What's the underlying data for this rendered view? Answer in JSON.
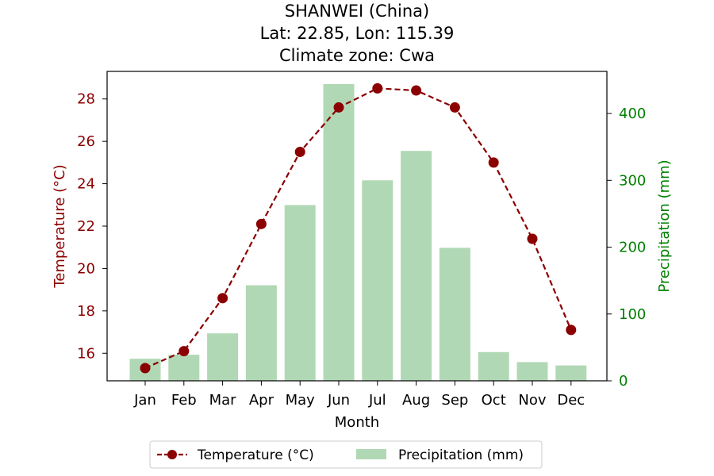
{
  "chart_data": {
    "type": "bar+line",
    "title_lines": [
      "SHANWEI (China)",
      "Lat: 22.85, Lon: 115.39",
      "Climate zone: Cwa"
    ],
    "categories": [
      "Jan",
      "Feb",
      "Mar",
      "Apr",
      "May",
      "Jun",
      "Jul",
      "Aug",
      "Sep",
      "Oct",
      "Nov",
      "Dec"
    ],
    "xlabel": "Month",
    "ylabel_left": "Temperature (°C)",
    "ylabel_right": "Precipitation (mm)",
    "ylim_left": [
      14.7,
      29.3
    ],
    "ylim_right": [
      0,
      463
    ],
    "yticks_left": [
      16,
      18,
      20,
      22,
      24,
      26,
      28
    ],
    "yticks_right": [
      0,
      100,
      200,
      300,
      400
    ],
    "series": [
      {
        "name": "Temperature (°C)",
        "kind": "line",
        "axis": "left",
        "style": "dashed with circle markers",
        "color": "#8b0000",
        "values": [
          15.3,
          16.1,
          18.6,
          22.1,
          25.5,
          27.6,
          28.5,
          28.4,
          27.6,
          25.0,
          21.4,
          17.1
        ]
      },
      {
        "name": "Precipitation (mm)",
        "kind": "bar",
        "axis": "right",
        "color": "#b1d8b5",
        "values": [
          33,
          39,
          71,
          143,
          263,
          444,
          300,
          344,
          199,
          43,
          28,
          23
        ]
      }
    ],
    "left_axis_color": "#8b0000",
    "right_axis_color": "#008000",
    "legend_position": "bottom-center",
    "grid": false
  }
}
